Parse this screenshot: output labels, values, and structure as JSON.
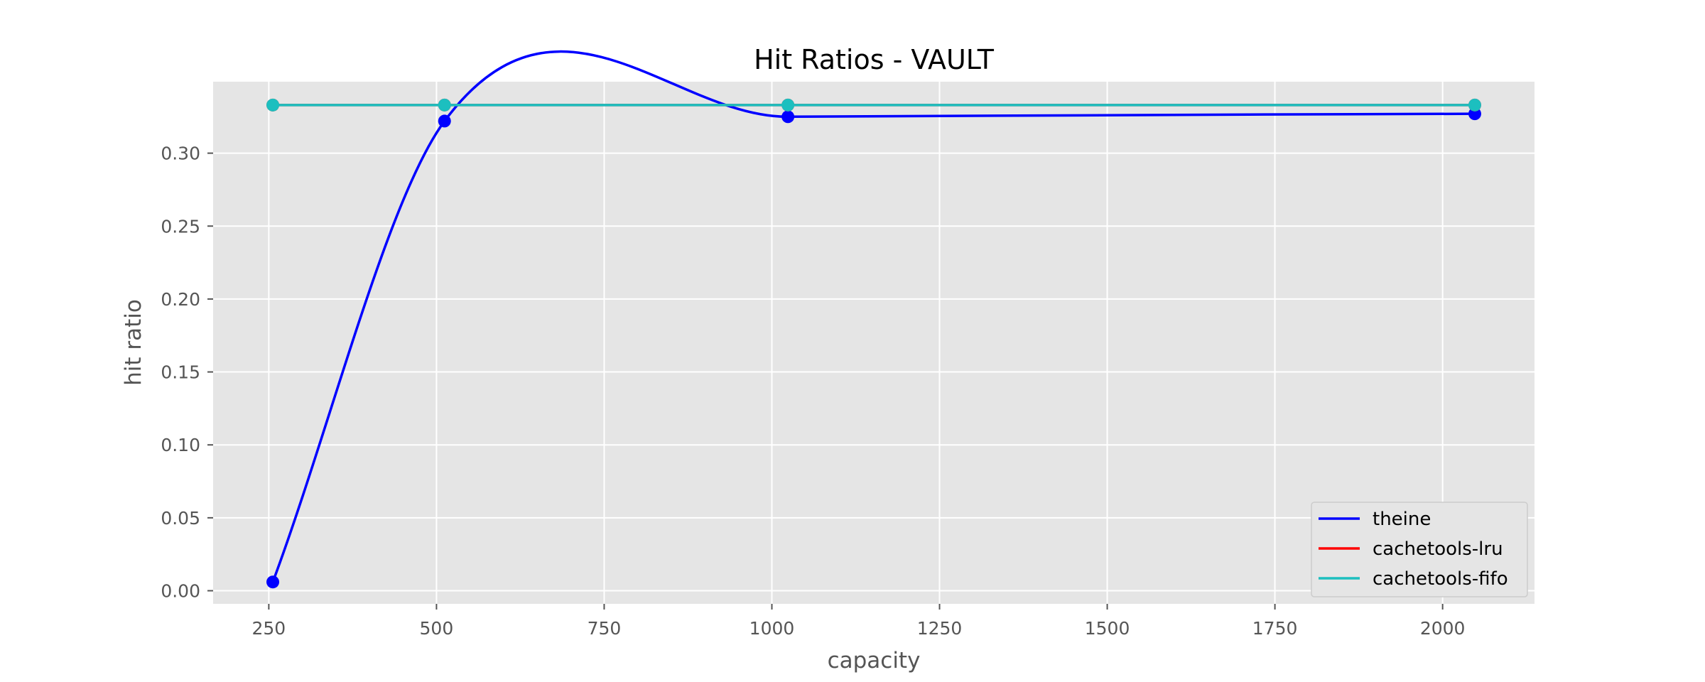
{
  "chart_data": {
    "type": "line",
    "title": "Hit Ratios - VAULT",
    "xlabel": "capacity",
    "ylabel": "hit ratio",
    "x": [
      256,
      512,
      1024,
      2048
    ],
    "series": [
      {
        "name": "theine",
        "color": "#0000ff",
        "values": [
          0.006,
          0.322,
          0.325,
          0.327
        ]
      },
      {
        "name": "cachetools-lru",
        "color": "#ff0000",
        "values": [
          0.333,
          0.333,
          0.333,
          0.333
        ]
      },
      {
        "name": "cachetools-fifo",
        "color": "#1cbfbf",
        "values": [
          0.333,
          0.333,
          0.333,
          0.333
        ]
      }
    ],
    "xlim": [
      167,
      2137
    ],
    "ylim": [
      -0.009,
      0.349
    ],
    "xticks": [
      "250",
      "500",
      "750",
      "1000",
      "1250",
      "1500",
      "1750",
      "2000"
    ],
    "yticks": [
      "0.00",
      "0.05",
      "0.10",
      "0.15",
      "0.20",
      "0.25",
      "0.30"
    ],
    "grid": true,
    "legend_position": "lower-right",
    "style": "ggplot"
  }
}
